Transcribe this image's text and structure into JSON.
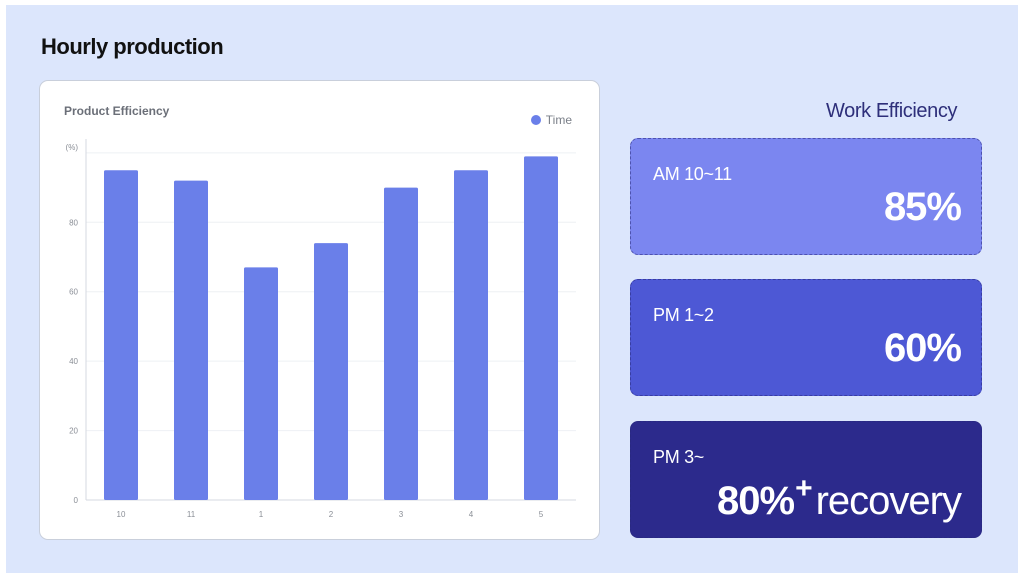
{
  "page": {
    "title": "Hourly production"
  },
  "chart_data": {
    "type": "bar",
    "title": "Product Efficiency",
    "unit_label": "(%)",
    "legend": [
      {
        "name": "Time",
        "color": "#6a7fe9"
      }
    ],
    "legend_position": "top-right",
    "categories": [
      "10",
      "11",
      "1",
      "2",
      "3",
      "4",
      "5"
    ],
    "series": [
      {
        "name": "Time",
        "values": [
          95,
          92,
          67,
          74,
          90,
          95,
          99
        ]
      }
    ],
    "yticks": [
      0,
      20,
      40,
      60,
      80
    ],
    "ylim": [
      0,
      104
    ],
    "grid": true,
    "bar_color": "#6a7fe9"
  },
  "work_efficiency": {
    "title": "Work Efficiency",
    "cards": [
      {
        "label": "AM 10~11",
        "value": "85%",
        "color": "#7b86f0"
      },
      {
        "label": "PM 1~2",
        "value": "60%",
        "color": "#4d58d5"
      },
      {
        "label": "PM 3~",
        "value": "80%",
        "sup": "+",
        "suffix": "recovery",
        "color": "#2c2a8c"
      }
    ]
  }
}
